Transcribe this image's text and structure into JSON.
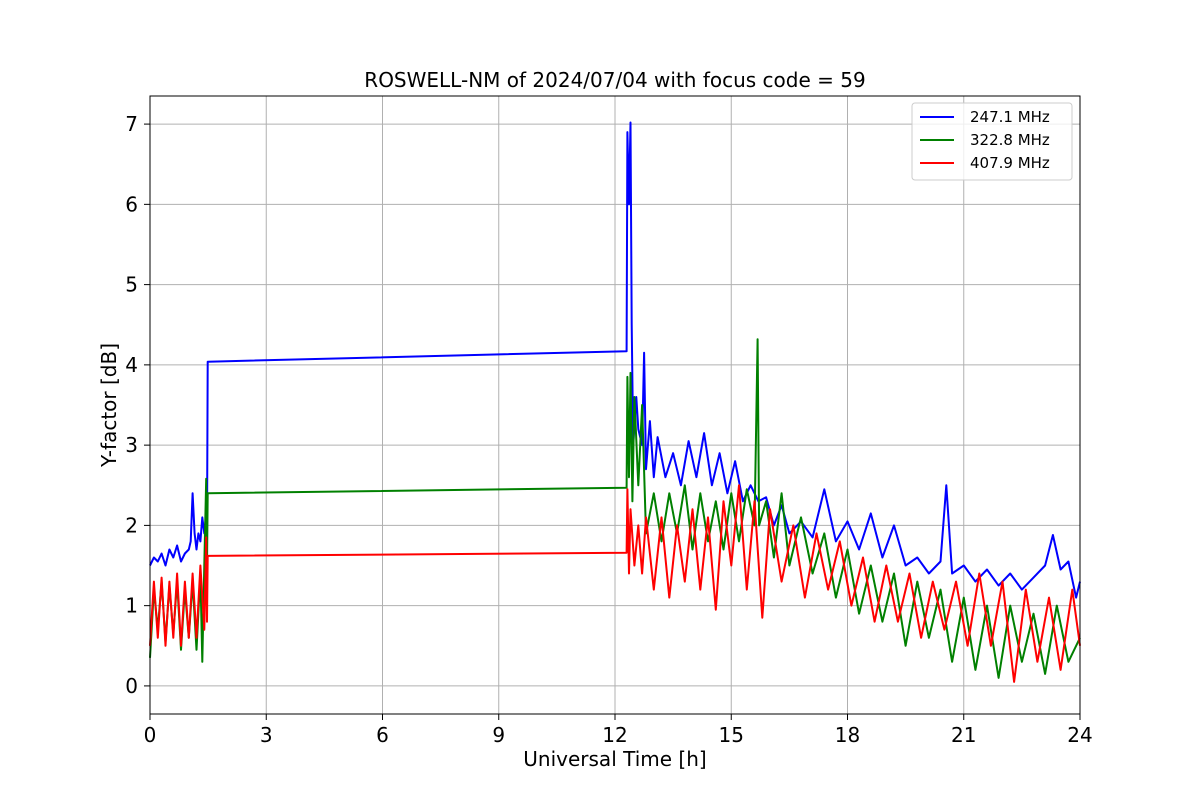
{
  "chart_data": {
    "type": "line",
    "title": "ROSWELL-NM of 2024/07/04 with focus code = 59",
    "xlabel": "Universal Time [h]",
    "ylabel": "Y-factor [dB]",
    "xlim": [
      0,
      24
    ],
    "ylim": [
      -0.35,
      7.35
    ],
    "xticks": [
      0,
      3,
      6,
      9,
      12,
      15,
      18,
      21,
      24
    ],
    "yticks": [
      0,
      1,
      2,
      3,
      4,
      5,
      6,
      7
    ],
    "grid": true,
    "legend_position": "top-right",
    "series": [
      {
        "name": "247.1 MHz",
        "color": "#0000ff",
        "points": [
          [
            0.0,
            1.5
          ],
          [
            0.1,
            1.6
          ],
          [
            0.2,
            1.55
          ],
          [
            0.3,
            1.65
          ],
          [
            0.4,
            1.5
          ],
          [
            0.5,
            1.7
          ],
          [
            0.6,
            1.6
          ],
          [
            0.7,
            1.75
          ],
          [
            0.8,
            1.55
          ],
          [
            0.9,
            1.65
          ],
          [
            1.0,
            1.7
          ],
          [
            1.05,
            1.8
          ],
          [
            1.1,
            2.4
          ],
          [
            1.15,
            1.9
          ],
          [
            1.2,
            1.7
          ],
          [
            1.25,
            1.9
          ],
          [
            1.3,
            1.8
          ],
          [
            1.35,
            2.1
          ],
          [
            1.4,
            1.9
          ],
          [
            1.45,
            2.15
          ],
          [
            1.47,
            1.9
          ],
          [
            1.49,
            4.04
          ],
          [
            12.3,
            4.17
          ],
          [
            12.32,
            6.9
          ],
          [
            12.36,
            6.0
          ],
          [
            12.4,
            7.02
          ],
          [
            12.43,
            4.5
          ],
          [
            12.47,
            3.0
          ],
          [
            12.55,
            3.6
          ],
          [
            12.6,
            3.2
          ],
          [
            12.7,
            3.0
          ],
          [
            12.75,
            4.15
          ],
          [
            12.8,
            2.7
          ],
          [
            12.9,
            3.3
          ],
          [
            13.0,
            2.6
          ],
          [
            13.1,
            3.1
          ],
          [
            13.3,
            2.6
          ],
          [
            13.5,
            2.9
          ],
          [
            13.7,
            2.5
          ],
          [
            13.9,
            3.05
          ],
          [
            14.1,
            2.6
          ],
          [
            14.3,
            3.15
          ],
          [
            14.5,
            2.5
          ],
          [
            14.7,
            2.9
          ],
          [
            14.9,
            2.4
          ],
          [
            15.1,
            2.8
          ],
          [
            15.3,
            2.3
          ],
          [
            15.5,
            2.5
          ],
          [
            15.7,
            2.3
          ],
          [
            15.9,
            2.35
          ],
          [
            16.1,
            2.0
          ],
          [
            16.3,
            2.25
          ],
          [
            16.5,
            1.9
          ],
          [
            16.8,
            2.05
          ],
          [
            17.1,
            1.85
          ],
          [
            17.4,
            2.45
          ],
          [
            17.7,
            1.8
          ],
          [
            18.0,
            2.05
          ],
          [
            18.3,
            1.7
          ],
          [
            18.6,
            2.15
          ],
          [
            18.9,
            1.6
          ],
          [
            19.2,
            2.0
          ],
          [
            19.5,
            1.5
          ],
          [
            19.8,
            1.6
          ],
          [
            20.1,
            1.4
          ],
          [
            20.4,
            1.55
          ],
          [
            20.55,
            2.5
          ],
          [
            20.7,
            1.4
          ],
          [
            21.0,
            1.5
          ],
          [
            21.3,
            1.3
          ],
          [
            21.6,
            1.45
          ],
          [
            21.9,
            1.25
          ],
          [
            22.2,
            1.4
          ],
          [
            22.5,
            1.2
          ],
          [
            22.8,
            1.35
          ],
          [
            23.1,
            1.5
          ],
          [
            23.3,
            1.88
          ],
          [
            23.5,
            1.45
          ],
          [
            23.7,
            1.55
          ],
          [
            23.9,
            1.1
          ],
          [
            24.0,
            1.3
          ]
        ]
      },
      {
        "name": "322.8 MHz",
        "color": "#008000",
        "points": [
          [
            0.0,
            0.35
          ],
          [
            0.1,
            1.2
          ],
          [
            0.2,
            0.7
          ],
          [
            0.3,
            1.3
          ],
          [
            0.4,
            0.55
          ],
          [
            0.5,
            1.25
          ],
          [
            0.6,
            0.65
          ],
          [
            0.7,
            1.3
          ],
          [
            0.8,
            0.45
          ],
          [
            0.9,
            1.2
          ],
          [
            1.0,
            0.6
          ],
          [
            1.1,
            1.3
          ],
          [
            1.2,
            0.45
          ],
          [
            1.3,
            1.4
          ],
          [
            1.35,
            0.3
          ],
          [
            1.4,
            1.5
          ],
          [
            1.45,
            2.58
          ],
          [
            1.47,
            1.5
          ],
          [
            1.49,
            2.4
          ],
          [
            12.3,
            2.47
          ],
          [
            12.32,
            3.85
          ],
          [
            12.36,
            2.6
          ],
          [
            12.4,
            3.9
          ],
          [
            12.45,
            2.3
          ],
          [
            12.5,
            3.6
          ],
          [
            12.6,
            2.5
          ],
          [
            12.7,
            3.5
          ],
          [
            12.8,
            1.9
          ],
          [
            13.0,
            2.4
          ],
          [
            13.2,
            1.8
          ],
          [
            13.4,
            2.4
          ],
          [
            13.6,
            1.9
          ],
          [
            13.8,
            2.5
          ],
          [
            14.0,
            1.7
          ],
          [
            14.2,
            2.4
          ],
          [
            14.4,
            1.8
          ],
          [
            14.6,
            2.3
          ],
          [
            14.8,
            1.7
          ],
          [
            15.0,
            2.4
          ],
          [
            15.2,
            1.8
          ],
          [
            15.4,
            2.45
          ],
          [
            15.6,
            2.0
          ],
          [
            15.68,
            4.32
          ],
          [
            15.72,
            2.0
          ],
          [
            15.9,
            2.3
          ],
          [
            16.1,
            1.6
          ],
          [
            16.3,
            2.4
          ],
          [
            16.5,
            1.5
          ],
          [
            16.8,
            2.1
          ],
          [
            17.1,
            1.4
          ],
          [
            17.4,
            1.9
          ],
          [
            17.7,
            1.1
          ],
          [
            18.0,
            1.7
          ],
          [
            18.3,
            0.9
          ],
          [
            18.6,
            1.5
          ],
          [
            18.9,
            0.8
          ],
          [
            19.2,
            1.4
          ],
          [
            19.5,
            0.5
          ],
          [
            19.8,
            1.3
          ],
          [
            20.1,
            0.6
          ],
          [
            20.4,
            1.2
          ],
          [
            20.7,
            0.3
          ],
          [
            21.0,
            1.1
          ],
          [
            21.3,
            0.2
          ],
          [
            21.6,
            1.0
          ],
          [
            21.9,
            0.1
          ],
          [
            22.2,
            1.0
          ],
          [
            22.5,
            0.3
          ],
          [
            22.8,
            0.9
          ],
          [
            23.1,
            0.15
          ],
          [
            23.4,
            1.0
          ],
          [
            23.7,
            0.3
          ],
          [
            24.0,
            0.6
          ]
        ]
      },
      {
        "name": "407.9 MHz",
        "color": "#ff0000",
        "points": [
          [
            0.0,
            0.5
          ],
          [
            0.1,
            1.3
          ],
          [
            0.2,
            0.6
          ],
          [
            0.3,
            1.35
          ],
          [
            0.4,
            0.5
          ],
          [
            0.5,
            1.3
          ],
          [
            0.6,
            0.6
          ],
          [
            0.7,
            1.4
          ],
          [
            0.8,
            0.5
          ],
          [
            0.9,
            1.3
          ],
          [
            1.0,
            0.6
          ],
          [
            1.1,
            1.4
          ],
          [
            1.2,
            0.6
          ],
          [
            1.3,
            1.5
          ],
          [
            1.4,
            0.7
          ],
          [
            1.45,
            1.85
          ],
          [
            1.47,
            0.8
          ],
          [
            1.49,
            1.62
          ],
          [
            12.3,
            1.66
          ],
          [
            12.32,
            2.45
          ],
          [
            12.36,
            1.4
          ],
          [
            12.4,
            2.2
          ],
          [
            12.5,
            1.5
          ],
          [
            12.6,
            2.0
          ],
          [
            12.7,
            1.4
          ],
          [
            12.8,
            2.1
          ],
          [
            13.0,
            1.2
          ],
          [
            13.2,
            2.1
          ],
          [
            13.4,
            1.1
          ],
          [
            13.6,
            2.0
          ],
          [
            13.8,
            1.3
          ],
          [
            14.0,
            2.2
          ],
          [
            14.2,
            1.2
          ],
          [
            14.4,
            2.1
          ],
          [
            14.6,
            0.95
          ],
          [
            14.8,
            2.3
          ],
          [
            15.0,
            1.5
          ],
          [
            15.2,
            2.5
          ],
          [
            15.4,
            1.2
          ],
          [
            15.6,
            2.3
          ],
          [
            15.8,
            0.85
          ],
          [
            16.0,
            2.2
          ],
          [
            16.3,
            1.3
          ],
          [
            16.6,
            2.0
          ],
          [
            16.9,
            1.1
          ],
          [
            17.2,
            1.9
          ],
          [
            17.5,
            1.2
          ],
          [
            17.8,
            1.8
          ],
          [
            18.1,
            1.0
          ],
          [
            18.4,
            1.6
          ],
          [
            18.7,
            0.8
          ],
          [
            19.0,
            1.5
          ],
          [
            19.3,
            0.8
          ],
          [
            19.6,
            1.4
          ],
          [
            19.9,
            0.6
          ],
          [
            20.2,
            1.3
          ],
          [
            20.5,
            0.7
          ],
          [
            20.8,
            1.3
          ],
          [
            21.1,
            0.5
          ],
          [
            21.4,
            1.4
          ],
          [
            21.7,
            0.5
          ],
          [
            22.0,
            1.3
          ],
          [
            22.3,
            0.05
          ],
          [
            22.6,
            1.2
          ],
          [
            22.9,
            0.3
          ],
          [
            23.2,
            1.1
          ],
          [
            23.5,
            0.2
          ],
          [
            23.8,
            1.2
          ],
          [
            24.0,
            0.5
          ]
        ]
      }
    ]
  }
}
